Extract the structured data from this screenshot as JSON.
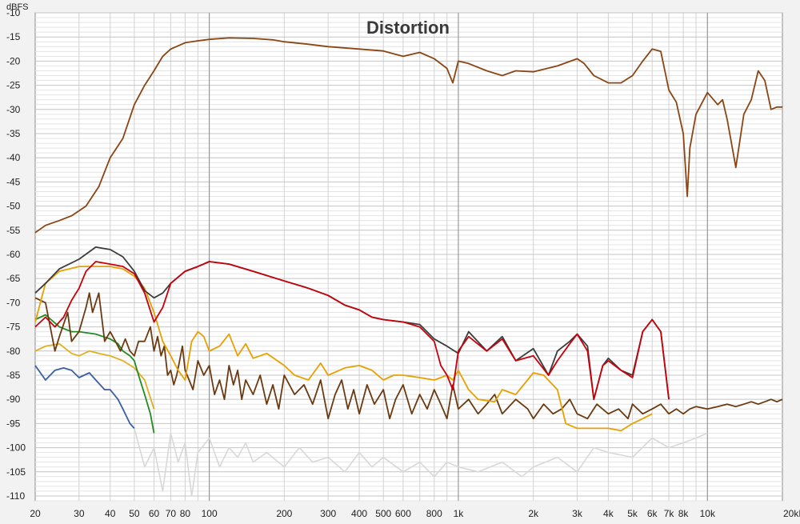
{
  "chart_data": {
    "type": "line",
    "title": "Distortion",
    "ylabel": "dBFS",
    "xlabel": "",
    "x_scale": "log",
    "xlim": [
      20,
      20000
    ],
    "ylim": [
      -111,
      -10
    ],
    "grid": true,
    "y_ticks": [
      -10,
      -15,
      -20,
      -25,
      -30,
      -35,
      -40,
      -45,
      -50,
      -55,
      -60,
      -65,
      -70,
      -75,
      -80,
      -85,
      -90,
      -95,
      -100,
      -105,
      -110
    ],
    "y_tick_labels": [
      "-10",
      "-15",
      "-20",
      "-25",
      "-30",
      "-35",
      "-40",
      "-45",
      "-50",
      "-55",
      "-60",
      "-65",
      "-70",
      "-75",
      "-80",
      "-85",
      "-90",
      "-95",
      "-100",
      "-105",
      "-110"
    ],
    "x_ticks": [
      20,
      30,
      40,
      50,
      60,
      70,
      80,
      100,
      200,
      300,
      400,
      500,
      600,
      800,
      1000,
      2000,
      3000,
      4000,
      5000,
      6000,
      7000,
      8000,
      10000,
      20000
    ],
    "x_tick_labels": [
      "20",
      "30",
      "40",
      "50",
      "60",
      "70",
      "80",
      "100",
      "200",
      "300",
      "400",
      "500",
      "600",
      "800",
      "1k",
      "2k",
      "3k",
      "4k",
      "5k",
      "6k",
      "7k",
      "8k",
      "10k",
      "20kHz"
    ],
    "colors": {
      "fundamental": "#8b4513",
      "thd": "#3c3c3c",
      "h2": "#c8000a",
      "h3": "#e8a000",
      "h4": "#6b3a10",
      "h5": "#228b22",
      "h6": "#e0b020",
      "h7": "#3a5fa0",
      "noise": "#d8d8d8"
    },
    "series": [
      {
        "key": "fundamental",
        "color": "#8b4513",
        "x": [
          20,
          22,
          25,
          28,
          32,
          36,
          40,
          45,
          50,
          55,
          60,
          65,
          70,
          80,
          90,
          100,
          120,
          150,
          180,
          200,
          250,
          300,
          400,
          500,
          550,
          600,
          700,
          800,
          900,
          950,
          1000,
          1100,
          1300,
          1500,
          1700,
          2000,
          2500,
          3000,
          3200,
          3500,
          4000,
          4500,
          5000,
          5500,
          6000,
          6500,
          7000,
          7500,
          8000,
          8300,
          8500,
          9000,
          10000,
          11000,
          11500,
          12000,
          13000,
          14000,
          15000,
          16000,
          17000,
          18000,
          19000,
          20000
        ],
        "y": [
          -55.5,
          -54,
          -53,
          -52,
          -50,
          -46,
          -40,
          -36,
          -29,
          -25,
          -22,
          -19,
          -17.5,
          -16.2,
          -15.8,
          -15.5,
          -15.2,
          -15.3,
          -15.6,
          -16,
          -16.5,
          -17,
          -17.5,
          -17.9,
          -18.5,
          -19,
          -18.2,
          -19.5,
          -21.5,
          -24.5,
          -20,
          -20.5,
          -22,
          -23,
          -22,
          -22.2,
          -21,
          -19.5,
          -20.5,
          -23,
          -24.5,
          -24.5,
          -23,
          -20,
          -17.5,
          -18,
          -26,
          -28.5,
          -35,
          -48,
          -38,
          -31,
          -26.5,
          -29,
          -28,
          -32,
          -42,
          -31,
          -28,
          -22,
          -24,
          -30,
          -29.5,
          -29.5
        ]
      },
      {
        "key": "thd",
        "color": "#3c3c3c",
        "x": [
          20,
          22,
          25,
          30,
          35,
          40,
          45,
          50,
          55,
          60,
          65,
          70,
          80,
          90,
          100,
          120,
          150,
          200,
          250,
          300,
          350,
          400,
          450,
          500,
          600,
          700,
          800,
          900,
          1000,
          1100,
          1300,
          1500,
          1700,
          2000,
          2300,
          2500,
          2800,
          3000,
          3300,
          3500,
          3800,
          4000,
          4500,
          5000,
          5500,
          6000,
          6500,
          7000
        ],
        "y": [
          -68,
          -66,
          -63,
          -61,
          -58.5,
          -59,
          -60.5,
          -63.5,
          -67.5,
          -69,
          -68,
          -66,
          -63.5,
          -62.5,
          -61.5,
          -62,
          -63.5,
          -65.5,
          -67,
          -68.5,
          -70.5,
          -71.5,
          -73,
          -73.5,
          -74,
          -74.5,
          -77.5,
          -79,
          -80.5,
          -76,
          -80,
          -77,
          -82,
          -79.5,
          -85,
          -80,
          -78,
          -76.5,
          -79,
          -90,
          -83,
          -81.5,
          -84,
          -85,
          -76,
          -73.5,
          -76,
          -90
        ]
      },
      {
        "key": "h2",
        "color": "#c8000a",
        "x": [
          20,
          22,
          24,
          26,
          28,
          30,
          32,
          35,
          40,
          45,
          50,
          55,
          60,
          65,
          70,
          80,
          90,
          100,
          120,
          150,
          200,
          250,
          300,
          350,
          400,
          450,
          500,
          600,
          700,
          800,
          850,
          900,
          950,
          1000,
          1100,
          1300,
          1500,
          1700,
          2000,
          2300,
          2500,
          2800,
          3000,
          3300,
          3500,
          3800,
          4000,
          4500,
          5000,
          5500,
          6000,
          6500,
          7000
        ],
        "y": [
          -75,
          -73,
          -75,
          -73,
          -69.5,
          -67,
          -63.5,
          -61.5,
          -62,
          -62.5,
          -64,
          -68,
          -74,
          -71,
          -66,
          -63.5,
          -62.5,
          -61.5,
          -62,
          -63.5,
          -65.5,
          -67,
          -68.5,
          -70.5,
          -71.5,
          -73,
          -73.5,
          -74,
          -75,
          -78,
          -83,
          -85,
          -88,
          -80,
          -77,
          -80,
          -77.5,
          -82,
          -81,
          -85,
          -82,
          -78.5,
          -76.5,
          -80,
          -90,
          -83,
          -82,
          -84,
          -85.5,
          -76,
          -73.5,
          -76,
          -90
        ]
      },
      {
        "key": "h3",
        "color": "#e8a000",
        "x": [
          20,
          22,
          25,
          30,
          35,
          40,
          45,
          50,
          55,
          60,
          65,
          70,
          75,
          80,
          85,
          90,
          95,
          100,
          110,
          120,
          130,
          140,
          150,
          170,
          200,
          220,
          250,
          280,
          300,
          350,
          400,
          450,
          500,
          550,
          600,
          700,
          800,
          850,
          900,
          950,
          1000,
          1100,
          1200,
          1400,
          1500,
          1700,
          2000,
          2200,
          2500,
          2700,
          3000,
          3300,
          3500,
          4000,
          4500,
          5000,
          5500,
          6000
        ],
        "y": [
          -74,
          -66,
          -63.5,
          -62.5,
          -62.5,
          -62.5,
          -63,
          -64.5,
          -67,
          -72,
          -78,
          -81,
          -84,
          -86,
          -78,
          -76,
          -77,
          -80,
          -79,
          -76.5,
          -81,
          -78.5,
          -81.5,
          -80.5,
          -83,
          -85,
          -86,
          -82.5,
          -85,
          -83.5,
          -83,
          -84,
          -86,
          -85,
          -85,
          -85.5,
          -86,
          -85.5,
          -85,
          -86,
          -84,
          -88,
          -90,
          -90.5,
          -88,
          -89,
          -84.5,
          -85,
          -88,
          -95,
          -96,
          -96,
          -96,
          -96,
          -96.5,
          -95,
          -94,
          -93
        ]
      },
      {
        "key": "h4",
        "color": "#6b3a10",
        "x": [
          20,
          22,
          24,
          25,
          27,
          28,
          30,
          32,
          33,
          34,
          36,
          38,
          40,
          42,
          44,
          46,
          48,
          50,
          52,
          55,
          58,
          60,
          62,
          64,
          66,
          68,
          70,
          72,
          74,
          76,
          78,
          80,
          83,
          86,
          90,
          95,
          100,
          105,
          110,
          115,
          120,
          125,
          130,
          135,
          140,
          150,
          160,
          170,
          180,
          190,
          200,
          220,
          240,
          260,
          280,
          300,
          320,
          340,
          360,
          380,
          400,
          430,
          460,
          500,
          530,
          560,
          600,
          650,
          700,
          750,
          800,
          850,
          900,
          950,
          1000,
          1100,
          1200,
          1300,
          1400,
          1500,
          1700,
          1900,
          2000,
          2200,
          2400,
          2600,
          2800,
          3000,
          3300,
          3600,
          4000,
          4400,
          4800,
          5000,
          5500,
          6000,
          6500,
          7000,
          7500,
          8000,
          8500,
          9000,
          10000,
          11000,
          12000,
          13000,
          14000,
          15000,
          16000,
          17000,
          18000,
          19000,
          20000
        ],
        "y": [
          -69,
          -70,
          -80,
          -77,
          -72,
          -78,
          -76,
          -71,
          -68,
          -72,
          -68,
          -78,
          -76,
          -78,
          -80,
          -77.5,
          -80,
          -81,
          -78,
          -78,
          -75,
          -80,
          -77,
          -81,
          -79,
          -85,
          -84,
          -87,
          -85,
          -82,
          -79,
          -84,
          -86,
          -88,
          -82,
          -85,
          -83,
          -89,
          -86,
          -90,
          -83,
          -87,
          -84,
          -90,
          -86,
          -89,
          -85,
          -91,
          -87,
          -92,
          -85,
          -89,
          -87,
          -91,
          -86,
          -94,
          -89,
          -86,
          -92,
          -88,
          -93,
          -87,
          -91,
          -88,
          -94,
          -90,
          -87,
          -93,
          -89,
          -92,
          -88,
          -91,
          -94,
          -87,
          -92,
          -90,
          -93,
          -91,
          -89,
          -93,
          -90,
          -92,
          -94,
          -91,
          -93,
          -92,
          -90,
          -93,
          -94,
          -91,
          -93,
          -92,
          -94,
          -91,
          -93,
          -92,
          -91,
          -93,
          -92,
          -93,
          -92,
          -91.5,
          -92,
          -91.5,
          -91,
          -91.5,
          -91,
          -90.5,
          -91,
          -90.5,
          -90,
          -90.5,
          -90
        ]
      },
      {
        "key": "h5",
        "color": "#228b22",
        "x": [
          20,
          22,
          25,
          28,
          30,
          35,
          40,
          43,
          45,
          48,
          50,
          52,
          55,
          58,
          60
        ],
        "y": [
          -73.5,
          -72.5,
          -75,
          -76,
          -76,
          -76.5,
          -77.5,
          -78.5,
          -80,
          -81,
          -82,
          -85,
          -89,
          -93,
          -97
        ]
      },
      {
        "key": "h6",
        "color": "#e0b020",
        "x": [
          20,
          22,
          25,
          28,
          30,
          33,
          36,
          40,
          45,
          50,
          55,
          60
        ],
        "y": [
          -80,
          -79,
          -78.5,
          -80.5,
          -81,
          -80,
          -80.5,
          -81,
          -82,
          -83.5,
          -86,
          -92
        ]
      },
      {
        "key": "h7",
        "color": "#3a5fa0",
        "x": [
          20,
          22,
          24,
          26,
          28,
          30,
          33,
          35,
          38,
          40,
          43,
          45,
          48,
          50
        ],
        "y": [
          -83,
          -86,
          -84,
          -83.5,
          -84,
          -85.5,
          -84.5,
          -86,
          -88,
          -88,
          -90,
          -92,
          -95,
          -96
        ]
      },
      {
        "key": "noise",
        "color": "#d8d8d8",
        "x": [
          50,
          55,
          60,
          65,
          70,
          75,
          80,
          85,
          90,
          100,
          110,
          120,
          130,
          140,
          150,
          170,
          200,
          230,
          260,
          300,
          350,
          400,
          450,
          500,
          600,
          700,
          800,
          900,
          1000,
          1200,
          1500,
          1800,
          2000,
          2500,
          3000,
          3500,
          4000,
          5000,
          6000,
          7000,
          8000,
          9000,
          10000
        ],
        "y": [
          -96,
          -104,
          -100,
          -109,
          -97,
          -103,
          -99,
          -110,
          -101,
          -98,
          -104,
          -100,
          -102,
          -99,
          -103,
          -101,
          -104,
          -100,
          -103,
          -102,
          -105,
          -101,
          -104,
          -102,
          -105,
          -103,
          -106,
          -103,
          -104,
          -105,
          -103,
          -106,
          -104,
          -102,
          -105,
          -100,
          -101,
          -102,
          -98,
          -100,
          -99,
          -98,
          -97
        ]
      }
    ]
  }
}
